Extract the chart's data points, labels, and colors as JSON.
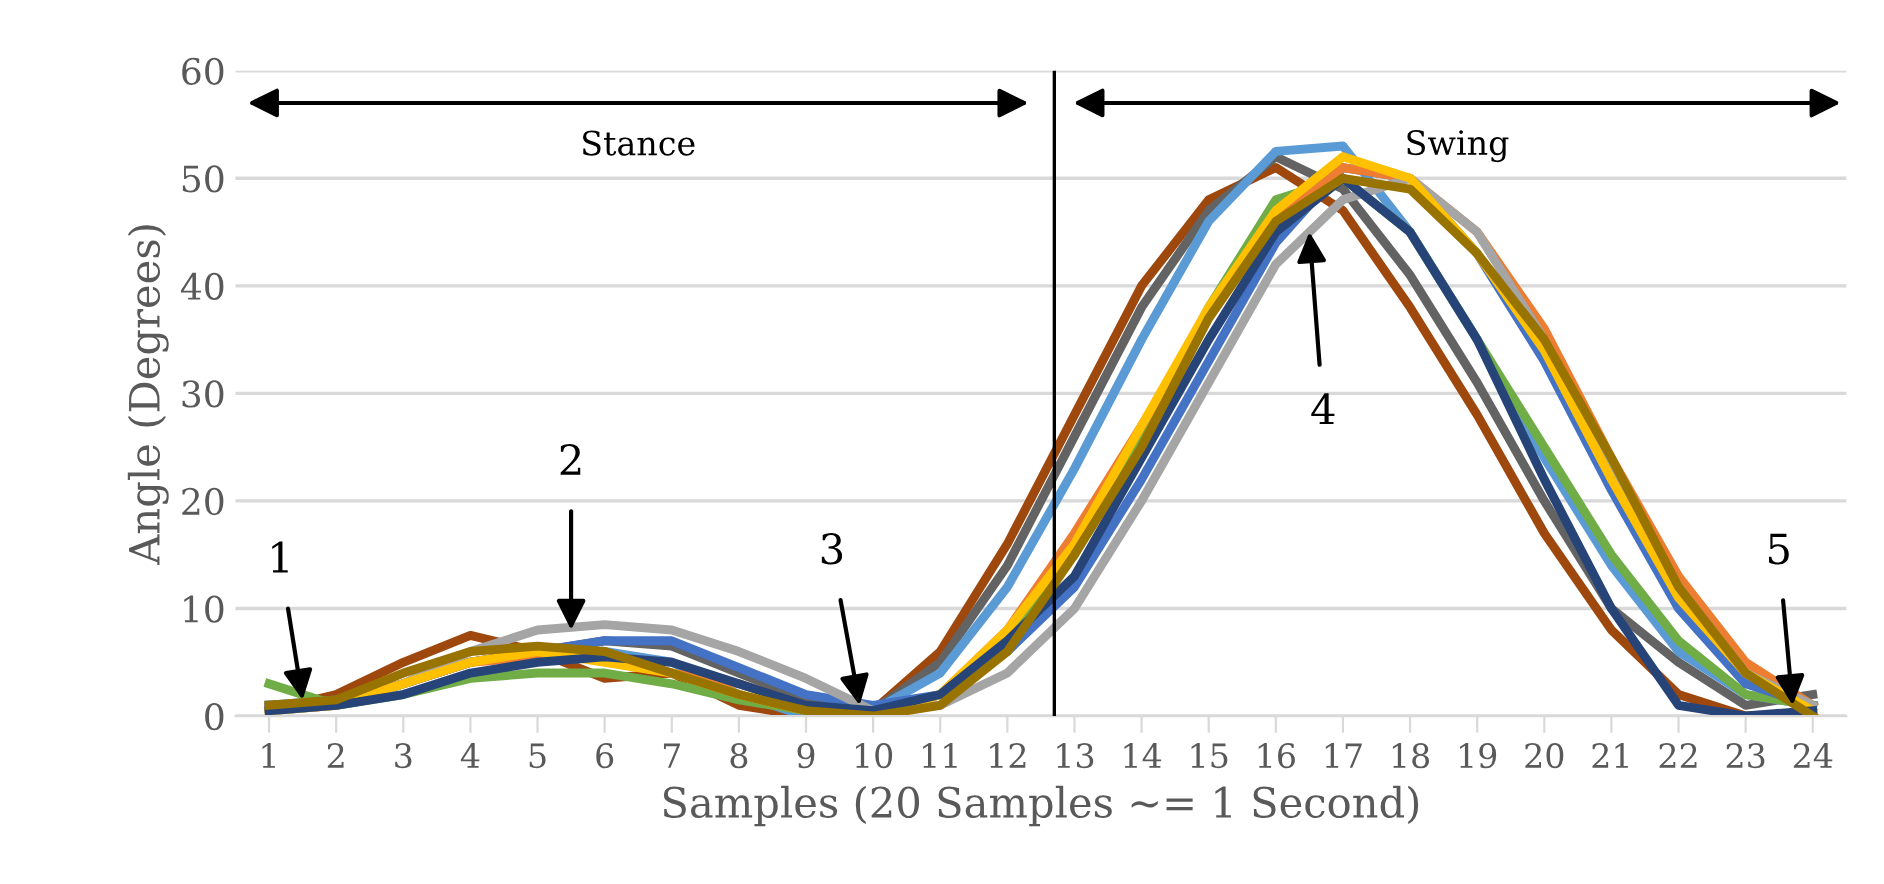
{
  "chart_data": {
    "type": "line",
    "xlabel": "Samples (20 Samples ~= 1 Second)",
    "ylabel": "Angle (Degrees)",
    "x": [
      1,
      2,
      3,
      4,
      5,
      6,
      7,
      8,
      9,
      10,
      11,
      12,
      13,
      14,
      15,
      16,
      17,
      18,
      19,
      20,
      21,
      22,
      23,
      24
    ],
    "xlim": [
      0.5,
      24.5
    ],
    "xticks": [
      1,
      2,
      3,
      4,
      5,
      6,
      7,
      8,
      9,
      10,
      11,
      12,
      13,
      14,
      15,
      16,
      17,
      18,
      19,
      20,
      21,
      22,
      23,
      24
    ],
    "ylim": [
      0,
      60
    ],
    "yticks": [
      0,
      10,
      20,
      30,
      40,
      50,
      60
    ],
    "grid": "y",
    "legend": false,
    "marker": "none",
    "line_style": "solid",
    "ref_lines": [
      {
        "axis": "x",
        "value": 12.7,
        "color": "#000000"
      }
    ],
    "annotations": [
      "Stance",
      "Swing",
      {
        "text": "1",
        "x": 1.5,
        "y": 1.5
      },
      {
        "text": "2",
        "x": 5.5,
        "y": 8
      },
      {
        "text": "3",
        "x": 9.8,
        "y": 1
      },
      {
        "text": "4",
        "x": 16.5,
        "y": 45
      },
      {
        "text": "5",
        "x": 23.7,
        "y": 1
      }
    ],
    "series": [
      {
        "color": "#9e480e",
        "values": [
          0.5,
          2,
          5,
          7.5,
          6,
          3.5,
          4,
          1,
          0,
          0.5,
          6,
          16,
          28,
          40,
          48,
          51,
          47,
          38,
          28,
          17,
          8,
          2,
          0,
          0
        ]
      },
      {
        "color": "#636363",
        "values": [
          1,
          1,
          3,
          5,
          6,
          7,
          6.5,
          4,
          1.5,
          0.5,
          5,
          14,
          26,
          38,
          47,
          52,
          49,
          41,
          31,
          20,
          10,
          5,
          1,
          2
        ]
      },
      {
        "color": "#5b9bd5",
        "values": [
          1,
          1.5,
          3,
          5,
          null,
          6,
          5,
          2,
          0,
          0.5,
          4,
          12,
          23,
          35,
          46,
          52.5,
          53,
          45,
          35,
          24,
          14,
          6,
          2,
          1
        ]
      },
      {
        "color": "#70ad47",
        "values": [
          3,
          1,
          2,
          3.5,
          4,
          4,
          3,
          1.5,
          0.5,
          0.5,
          2,
          7,
          15,
          26,
          38,
          48,
          50,
          45,
          35,
          25,
          15,
          7,
          2,
          1
        ]
      },
      {
        "color": "#4472c4",
        "values": [
          1,
          1,
          3,
          5,
          6,
          7,
          7,
          4.5,
          2,
          1,
          2,
          6,
          12,
          22,
          33,
          44,
          51,
          50,
          43,
          33,
          21,
          10,
          3,
          1
        ]
      },
      {
        "color": "#ed7d31",
        "values": [
          0.5,
          1,
          3,
          5,
          5.5,
          5.5,
          4,
          3,
          1,
          0,
          2,
          8,
          17,
          27,
          37,
          46,
          51,
          50,
          45,
          36,
          24,
          13,
          5,
          1
        ]
      },
      {
        "color": "#a5a5a5",
        "values": [
          0.5,
          1,
          3,
          6,
          8,
          8.5,
          8,
          6,
          3.5,
          0.5,
          1,
          4,
          10,
          20,
          31,
          42,
          48,
          50,
          45,
          35,
          23,
          12,
          4,
          1
        ]
      },
      {
        "color": "#ffc000",
        "values": [
          0.5,
          1,
          3,
          5,
          6,
          5,
          4,
          2,
          0.5,
          0,
          2,
          8,
          16,
          27,
          38,
          47,
          52,
          50,
          43,
          34,
          22,
          11,
          4,
          0.5
        ]
      },
      {
        "color": "#264478",
        "values": [
          0.5,
          1,
          2,
          4,
          5,
          5.5,
          5,
          3,
          1,
          0.5,
          2,
          7,
          13,
          24,
          35,
          45,
          50,
          45,
          35,
          22,
          10,
          1,
          0,
          0.5
        ]
      },
      {
        "color": "#997300",
        "values": [
          1,
          1.5,
          4,
          6,
          6.5,
          6,
          4,
          2,
          0.5,
          0,
          1,
          6,
          15,
          25,
          37,
          46,
          50,
          49,
          43,
          35,
          24,
          12,
          4,
          0
        ]
      }
    ]
  }
}
